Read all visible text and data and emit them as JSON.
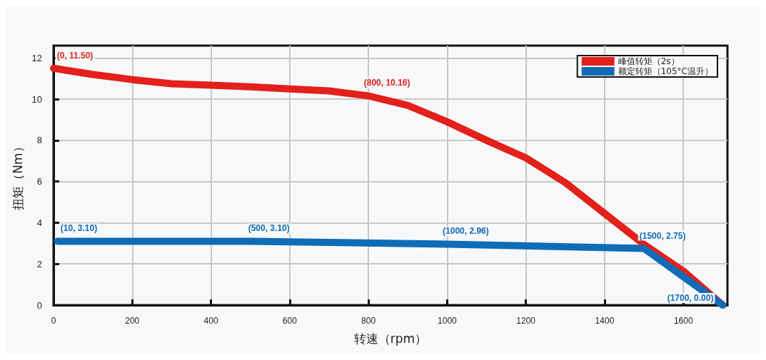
{
  "chart_data": {
    "type": "line",
    "xlabel": "转速（rpm）",
    "ylabel": "扭矩（Nm）",
    "xlim": [
      0,
      1712
    ],
    "xticks": [
      0,
      200,
      400,
      600,
      800,
      1000,
      1200,
      1400,
      1600
    ],
    "ylim": [
      0,
      12.6
    ],
    "yticks": [
      0,
      2,
      4,
      6,
      8,
      10,
      12
    ],
    "grid": true,
    "legend": "top right",
    "line_style": "solid",
    "series": [
      {
        "name": "峰值转矩（2s）",
        "color": "#e3201b",
        "x": [
          0,
          100,
          200,
          300,
          400,
          500,
          600,
          700,
          800,
          900,
          1000,
          1100,
          1200,
          1300,
          1400,
          1500,
          1600,
          1700
        ],
        "values": [
          11.5,
          11.2,
          10.95,
          10.75,
          10.68,
          10.6,
          10.5,
          10.4,
          10.16,
          9.7,
          8.9,
          8.0,
          7.15,
          5.95,
          4.45,
          2.95,
          1.65,
          0
        ],
        "value_labels": [
          "(0, 11.50)",
          null,
          null,
          null,
          null,
          null,
          null,
          null,
          "(800, 10.16)",
          null,
          null,
          null,
          null,
          null,
          null,
          null,
          null,
          null
        ]
      },
      {
        "name": "额定转矩（105°C温升）",
        "color": "#0f6cb6",
        "x": [
          10,
          500,
          1000,
          1500,
          1700
        ],
        "values": [
          3.1,
          3.1,
          2.96,
          2.75,
          0
        ],
        "value_labels": [
          "(10, 3.10)",
          "(500, 3.10)",
          "(1000, 2.96)",
          "(1500, 2.75)",
          "(1700, 0.00)"
        ]
      }
    ]
  }
}
